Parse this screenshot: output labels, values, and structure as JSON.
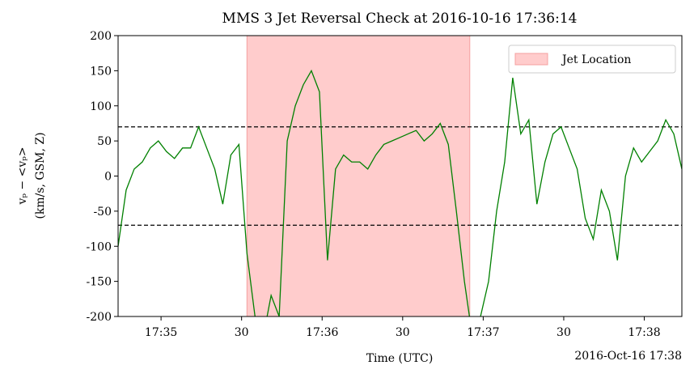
{
  "chart_data": {
    "type": "line",
    "title": "MMS 3 Jet Reversal Check at 2016-10-16 17:36:14",
    "ylabel": [
      "vₚ − <vₚ>",
      "(km/s, GSM, Z)"
    ],
    "xlabel": "Time (UTC)",
    "x_offset_label": "2016-Oct-16 17:38",
    "xlim": [
      "17:34:44",
      "17:38:14"
    ],
    "xticks": [
      {
        "value": "17:35:00",
        "label": "17:35"
      },
      {
        "value": "17:35:30",
        "label": "30"
      },
      {
        "value": "17:36:00",
        "label": "17:36"
      },
      {
        "value": "17:36:30",
        "label": "30"
      },
      {
        "value": "17:37:00",
        "label": "17:37"
      },
      {
        "value": "17:37:30",
        "label": "30"
      },
      {
        "value": "17:38:00",
        "label": "17:38"
      }
    ],
    "ylim": [
      -200,
      200
    ],
    "yticks": [
      -200,
      -150,
      -100,
      -50,
      0,
      50,
      100,
      150,
      200
    ],
    "thresholds": [
      70,
      -70
    ],
    "span": {
      "name": "Jet Location",
      "color": "#ffcccc",
      "range": [
        "17:35:32",
        "17:36:55"
      ]
    },
    "legend": "upper right",
    "x": [
      "17:34:44",
      "17:34:47",
      "17:34:50",
      "17:34:53",
      "17:34:56",
      "17:34:59",
      "17:35:02",
      "17:35:05",
      "17:35:08",
      "17:35:11",
      "17:35:14",
      "17:35:17",
      "17:35:20",
      "17:35:23",
      "17:35:26",
      "17:35:29",
      "17:35:32",
      "17:35:35",
      "17:35:38",
      "17:35:41",
      "17:35:44",
      "17:35:47",
      "17:35:50",
      "17:35:53",
      "17:35:56",
      "17:35:59",
      "17:36:02",
      "17:36:05",
      "17:36:08",
      "17:36:11",
      "17:36:14",
      "17:36:17",
      "17:36:20",
      "17:36:23",
      "17:36:26",
      "17:36:29",
      "17:36:32",
      "17:36:35",
      "17:36:38",
      "17:36:41",
      "17:36:44",
      "17:36:47",
      "17:36:50",
      "17:36:53",
      "17:36:56",
      "17:36:59",
      "17:37:02",
      "17:37:05",
      "17:37:08",
      "17:37:11",
      "17:37:14",
      "17:37:17",
      "17:37:20",
      "17:37:23",
      "17:37:26",
      "17:37:29",
      "17:37:32",
      "17:37:35",
      "17:37:38",
      "17:37:41",
      "17:37:44",
      "17:37:47",
      "17:37:50",
      "17:37:53",
      "17:37:56",
      "17:37:59",
      "17:38:02",
      "17:38:05",
      "17:38:08",
      "17:38:11",
      "17:38:14"
    ],
    "series": [
      {
        "color": "#008000",
        "values": [
          -100,
          -20,
          10,
          20,
          40,
          50,
          35,
          25,
          40,
          40,
          70,
          40,
          10,
          -40,
          30,
          45,
          -110,
          -200,
          -230,
          -170,
          -200,
          50,
          100,
          130,
          150,
          120,
          -120,
          10,
          30,
          20,
          20,
          10,
          30,
          45,
          50,
          55,
          60,
          65,
          50,
          60,
          75,
          45,
          -50,
          -150,
          -230,
          -200,
          -150,
          -50,
          20,
          140,
          60,
          80,
          -40,
          20,
          60,
          70,
          40,
          10,
          -60,
          -90,
          -20,
          -50,
          -120,
          0,
          40,
          20,
          35,
          50,
          80,
          60,
          10
        ]
      }
    ]
  }
}
